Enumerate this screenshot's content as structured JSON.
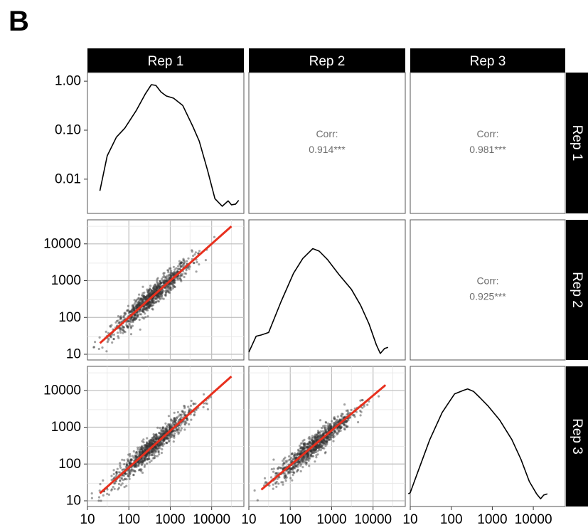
{
  "panel_label": "B",
  "chart_data": {
    "type": "scatter-matrix",
    "variables": [
      "Rep 1",
      "Rep 2",
      "Rep 3"
    ],
    "scale": "log10",
    "density_axis": {
      "ticks": [
        0.01,
        0.1,
        1.0
      ],
      "tick_labels": [
        "0.01",
        "0.10",
        "1.00"
      ]
    },
    "value_axis": {
      "ticks": [
        10,
        100,
        1000,
        10000
      ],
      "tick_labels": [
        "10",
        "100",
        "1000",
        "10000"
      ]
    },
    "correlations": [
      {
        "row": "Rep 1",
        "col": "Rep 2",
        "label": "Corr:",
        "value": "0.914***"
      },
      {
        "row": "Rep 1",
        "col": "Rep 3",
        "label": "Corr:",
        "value": "0.981***"
      },
      {
        "row": "Rep 2",
        "col": "Rep 3",
        "label": "Corr:",
        "value": "0.925***"
      }
    ],
    "density_curves": {
      "Rep 1": {
        "x": [
          20,
          30,
          50,
          80,
          150,
          250,
          350,
          450,
          600,
          800,
          1200,
          2000,
          3500,
          5000,
          8000,
          12000,
          18000,
          25000,
          30000,
          38000,
          45000
        ],
        "y": [
          0.0058,
          0.03,
          0.072,
          0.11,
          0.25,
          0.55,
          0.85,
          0.82,
          0.6,
          0.5,
          0.45,
          0.32,
          0.12,
          0.06,
          0.015,
          0.004,
          0.0028,
          0.0036,
          0.003,
          0.0031,
          0.0037
        ]
      },
      "Rep 2": {
        "x": [
          10,
          15,
          20,
          30,
          60,
          120,
          200,
          350,
          500,
          800,
          1500,
          3000,
          5000,
          8000,
          12000,
          15000,
          19000,
          23000
        ],
        "y": [
          0.04,
          0.17,
          0.18,
          0.2,
          0.45,
          0.68,
          0.8,
          0.88,
          0.86,
          0.79,
          0.67,
          0.55,
          0.42,
          0.27,
          0.1,
          0.03,
          0.07,
          0.08
        ]
      },
      "Rep 3": {
        "x": [
          9,
          10,
          15,
          30,
          60,
          120,
          200,
          250,
          350,
          500,
          800,
          1500,
          3000,
          5000,
          8000,
          12000,
          15000,
          18000,
          22000
        ],
        "y": [
          0.08,
          0.09,
          0.25,
          0.52,
          0.74,
          0.89,
          0.92,
          0.93,
          0.91,
          0.86,
          0.79,
          0.68,
          0.52,
          0.36,
          0.18,
          0.08,
          0.04,
          0.07,
          0.08
        ]
      }
    },
    "scatter": [
      {
        "row": "Rep 2",
        "col": "Rep 1",
        "n_points": 900,
        "fit_line": {
          "x": [
            20,
            30000
          ],
          "y": [
            20,
            30000
          ],
          "color": "#e8301e"
        }
      },
      {
        "row": "Rep 3",
        "col": "Rep 1",
        "n_points": 900,
        "fit_line": {
          "x": [
            20,
            30000
          ],
          "y": [
            16,
            24000
          ],
          "color": "#e8301e"
        }
      },
      {
        "row": "Rep 3",
        "col": "Rep 2",
        "n_points": 900,
        "fit_line": {
          "x": [
            20,
            20000
          ],
          "y": [
            20,
            14000
          ],
          "color": "#e8301e"
        }
      }
    ],
    "grid": true,
    "strip_color": "#000000",
    "point_color": "#333333",
    "line_color": "#e8301e"
  }
}
